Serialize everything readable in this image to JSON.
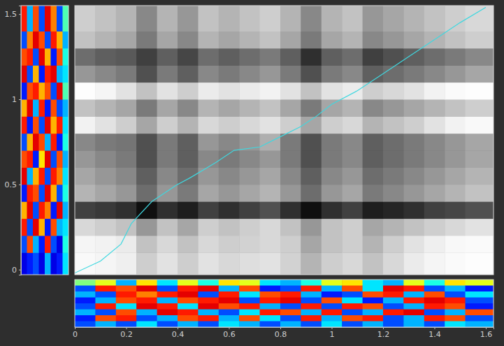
{
  "chart_data": [
    {
      "type": "heatmap",
      "color": "gray",
      "xlim": [
        0,
        1.63
      ],
      "ylim": [
        -0.03,
        1.55
      ],
      "xticks": [
        0,
        0.2,
        0.4,
        0.6,
        0.8,
        1,
        1.2,
        1.4,
        1.6
      ],
      "yticks": [
        0,
        0.5,
        1,
        1.5
      ],
      "x_edges": [
        0,
        0.08,
        0.16,
        0.24,
        0.32,
        0.4,
        0.48,
        0.56,
        0.64,
        0.72,
        0.8,
        0.88,
        0.96,
        1.04,
        1.12,
        1.2,
        1.28,
        1.36,
        1.44,
        1.52,
        1.63
      ],
      "y_edges": [
        -0.03,
        0.1,
        0.2,
        0.3,
        0.4,
        0.5,
        0.6,
        0.7,
        0.8,
        0.9,
        1.0,
        1.1,
        1.2,
        1.3,
        1.4,
        1.55
      ],
      "zlim": [
        0,
        1
      ],
      "z": [
        [
          0.05,
          0.08,
          0.12,
          0.3,
          0.2,
          0.3,
          0.2,
          0.25,
          0.22,
          0.2,
          0.28,
          0.4,
          0.3,
          0.25,
          0.35,
          0.25,
          0.15,
          0.08,
          0.04,
          0.02
        ],
        [
          0.08,
          0.1,
          0.15,
          0.35,
          0.25,
          0.35,
          0.25,
          0.3,
          0.28,
          0.25,
          0.3,
          0.45,
          0.35,
          0.3,
          0.4,
          0.3,
          0.2,
          0.12,
          0.06,
          0.04
        ],
        [
          0.25,
          0.3,
          0.35,
          0.5,
          0.35,
          0.45,
          0.3,
          0.35,
          0.3,
          0.25,
          0.35,
          0.5,
          0.35,
          0.3,
          0.45,
          0.4,
          0.35,
          0.3,
          0.25,
          0.2
        ],
        [
          0.8,
          0.82,
          0.85,
          0.95,
          0.85,
          0.9,
          0.8,
          0.85,
          0.8,
          0.75,
          0.85,
          0.95,
          0.85,
          0.8,
          0.9,
          0.88,
          0.85,
          0.8,
          0.78,
          0.75
        ],
        [
          0.4,
          0.45,
          0.5,
          0.65,
          0.5,
          0.6,
          0.45,
          0.5,
          0.45,
          0.4,
          0.5,
          0.65,
          0.5,
          0.45,
          0.6,
          0.55,
          0.5,
          0.45,
          0.4,
          0.35
        ],
        [
          0.45,
          0.5,
          0.55,
          0.7,
          0.55,
          0.65,
          0.5,
          0.55,
          0.5,
          0.45,
          0.55,
          0.7,
          0.55,
          0.5,
          0.65,
          0.6,
          0.55,
          0.5,
          0.45,
          0.4
        ],
        [
          0.5,
          0.55,
          0.6,
          0.75,
          0.6,
          0.7,
          0.55,
          0.6,
          0.55,
          0.5,
          0.6,
          0.75,
          0.6,
          0.55,
          0.7,
          0.65,
          0.6,
          0.55,
          0.5,
          0.45
        ],
        [
          0.55,
          0.6,
          0.62,
          0.75,
          0.6,
          0.7,
          0.5,
          0.55,
          0.5,
          0.42,
          0.6,
          0.75,
          0.6,
          0.55,
          0.7,
          0.65,
          0.6,
          0.55,
          0.5,
          0.45
        ],
        [
          0.1,
          0.2,
          0.3,
          0.45,
          0.3,
          0.4,
          0.25,
          0.3,
          0.25,
          0.2,
          0.3,
          0.45,
          0.3,
          0.25,
          0.4,
          0.35,
          0.3,
          0.2,
          0.1,
          0.05
        ],
        [
          0.35,
          0.4,
          0.45,
          0.6,
          0.45,
          0.55,
          0.4,
          0.45,
          0.4,
          0.35,
          0.45,
          0.6,
          0.45,
          0.4,
          0.55,
          0.5,
          0.45,
          0.4,
          0.35,
          0.3
        ],
        [
          0.02,
          0.08,
          0.2,
          0.35,
          0.2,
          0.3,
          0.15,
          0.2,
          0.15,
          0.1,
          0.2,
          0.35,
          0.2,
          0.15,
          0.3,
          0.25,
          0.2,
          0.1,
          0.04,
          0.02
        ],
        [
          0.5,
          0.55,
          0.6,
          0.75,
          0.6,
          0.7,
          0.55,
          0.6,
          0.55,
          0.5,
          0.6,
          0.75,
          0.6,
          0.55,
          0.7,
          0.65,
          0.6,
          0.55,
          0.5,
          0.45
        ],
        [
          0.65,
          0.7,
          0.72,
          0.8,
          0.7,
          0.78,
          0.65,
          0.7,
          0.65,
          0.6,
          0.7,
          0.85,
          0.7,
          0.65,
          0.8,
          0.75,
          0.7,
          0.65,
          0.6,
          0.55
        ],
        [
          0.35,
          0.4,
          0.45,
          0.6,
          0.45,
          0.55,
          0.4,
          0.45,
          0.4,
          0.35,
          0.45,
          0.6,
          0.45,
          0.4,
          0.55,
          0.5,
          0.45,
          0.4,
          0.35,
          0.3
        ],
        [
          0.3,
          0.35,
          0.4,
          0.55,
          0.4,
          0.5,
          0.35,
          0.4,
          0.35,
          0.3,
          0.4,
          0.55,
          0.4,
          0.35,
          0.5,
          0.45,
          0.4,
          0.35,
          0.3,
          0.25
        ]
      ],
      "series": [
        {
          "type": "line",
          "color": "#3fd8e0",
          "x": [
            0,
            0.1,
            0.18,
            0.22,
            0.3,
            0.4,
            0.45,
            0.55,
            0.62,
            0.72,
            0.8,
            0.88,
            0.94,
            1.0,
            1.1,
            1.2,
            1.3,
            1.4,
            1.5,
            1.6
          ],
          "values": [
            -0.02,
            0.05,
            0.15,
            0.27,
            0.4,
            0.5,
            0.54,
            0.63,
            0.7,
            0.72,
            0.78,
            0.84,
            0.9,
            0.97,
            1.05,
            1.15,
            1.25,
            1.35,
            1.45,
            1.54
          ]
        }
      ]
    },
    {
      "type": "heatmap",
      "color": "jet",
      "tick_labels": false,
      "ylim": [
        -0.03,
        1.55
      ],
      "y_edges": [
        -0.03,
        0.1,
        0.2,
        0.3,
        0.4,
        0.5,
        0.6,
        0.7,
        0.8,
        0.9,
        1.0,
        1.1,
        1.2,
        1.3,
        1.4,
        1.55
      ],
      "zlim": [
        0,
        1
      ],
      "z": [
        [
          0.1,
          0.15,
          0.2,
          0.1,
          0.3,
          0.1,
          0.15,
          0.35
        ],
        [
          0.2,
          0.8,
          0.3,
          0.15,
          0.85,
          0.2,
          0.1,
          0.4
        ],
        [
          0.85,
          0.2,
          0.9,
          0.7,
          0.15,
          0.8,
          0.3,
          0.35
        ],
        [
          0.7,
          0.9,
          0.2,
          0.85,
          0.75,
          0.15,
          0.9,
          0.3
        ],
        [
          0.15,
          0.85,
          0.8,
          0.2,
          0.9,
          0.7,
          0.2,
          0.4
        ],
        [
          0.9,
          0.3,
          0.7,
          0.85,
          0.2,
          0.85,
          0.75,
          0.35
        ],
        [
          0.8,
          0.85,
          0.15,
          0.65,
          0.9,
          0.2,
          0.8,
          0.3
        ],
        [
          0.2,
          0.7,
          0.9,
          0.8,
          0.3,
          0.85,
          0.15,
          0.4
        ],
        [
          0.85,
          0.15,
          0.8,
          0.2,
          0.9,
          0.7,
          0.85,
          0.35
        ],
        [
          0.7,
          0.9,
          0.3,
          0.85,
          0.15,
          0.8,
          0.2,
          0.3
        ],
        [
          0.15,
          0.8,
          0.85,
          0.7,
          0.8,
          0.2,
          0.9,
          0.45
        ],
        [
          0.9,
          0.2,
          0.7,
          0.15,
          0.85,
          0.9,
          0.3,
          0.35
        ],
        [
          0.8,
          0.85,
          0.2,
          0.9,
          0.7,
          0.15,
          0.8,
          0.4
        ],
        [
          0.2,
          0.75,
          0.9,
          0.8,
          0.2,
          0.85,
          0.7,
          0.3
        ],
        [
          0.85,
          0.3,
          0.8,
          0.2,
          0.9,
          0.75,
          0.2,
          0.45
        ]
      ]
    },
    {
      "type": "heatmap",
      "color": "jet",
      "tick_labels": false,
      "xlim": [
        0,
        1.63
      ],
      "x_edges": [
        0,
        0.08,
        0.16,
        0.24,
        0.32,
        0.4,
        0.48,
        0.56,
        0.64,
        0.72,
        0.8,
        0.88,
        0.96,
        1.04,
        1.12,
        1.2,
        1.28,
        1.36,
        1.44,
        1.52,
        1.63
      ],
      "zlim": [
        0,
        1
      ],
      "z": [
        [
          0.5,
          0.6,
          0.3,
          0.65,
          0.35,
          0.6,
          0.4,
          0.65,
          0.6,
          0.35,
          0.3,
          0.4,
          0.6,
          0.65,
          0.35,
          0.3,
          0.6,
          0.4,
          0.65,
          0.6
        ],
        [
          0.2,
          0.85,
          0.8,
          0.9,
          0.2,
          0.85,
          0.9,
          0.3,
          0.8,
          0.15,
          0.2,
          0.85,
          0.3,
          0.8,
          0.35,
          0.9,
          0.85,
          0.2,
          0.3,
          0.15
        ],
        [
          0.3,
          0.2,
          0.85,
          0.75,
          0.85,
          0.9,
          0.2,
          0.85,
          0.35,
          0.8,
          0.85,
          0.3,
          0.15,
          0.2,
          0.8,
          0.85,
          0.3,
          0.8,
          0.2,
          0.35
        ],
        [
          0.15,
          0.3,
          0.8,
          0.85,
          0.3,
          0.8,
          0.85,
          0.9,
          0.2,
          0.85,
          0.9,
          0.2,
          0.8,
          0.35,
          0.15,
          0.3,
          0.85,
          0.9,
          0.85,
          0.2
        ],
        [
          0.2,
          0.85,
          0.35,
          0.9,
          0.85,
          0.35,
          0.9,
          0.8,
          0.85,
          0.3,
          0.2,
          0.85,
          0.2,
          0.85,
          0.8,
          0.2,
          0.3,
          0.85,
          0.8,
          0.15
        ],
        [
          0.3,
          0.2,
          0.8,
          0.3,
          0.9,
          0.85,
          0.3,
          0.2,
          0.35,
          0.85,
          0.8,
          0.3,
          0.85,
          0.2,
          0.3,
          0.85,
          0.9,
          0.2,
          0.3,
          0.8
        ],
        [
          0.15,
          0.8,
          0.85,
          0.2,
          0.3,
          0.8,
          0.85,
          0.3,
          0.8,
          0.35,
          0.2,
          0.85,
          0.3,
          0.8,
          0.85,
          0.2,
          0.3,
          0.85,
          0.8,
          0.2
        ],
        [
          0.2,
          0.3,
          0.2,
          0.35,
          0.2,
          0.3,
          0.2,
          0.35,
          0.3,
          0.2,
          0.3,
          0.2,
          0.35,
          0.2,
          0.3,
          0.2,
          0.3,
          0.2,
          0.35,
          0.3
        ]
      ]
    }
  ]
}
